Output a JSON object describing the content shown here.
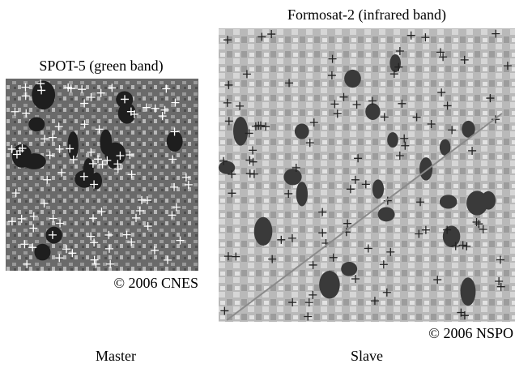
{
  "left": {
    "title": "SPOT-5 (green band)",
    "credit": "© 2006 CNES",
    "caption": "Master"
  },
  "right": {
    "title": "Formosat-2 (infrared band)",
    "credit": "© 2006 NSPO",
    "caption": "Slave"
  }
}
